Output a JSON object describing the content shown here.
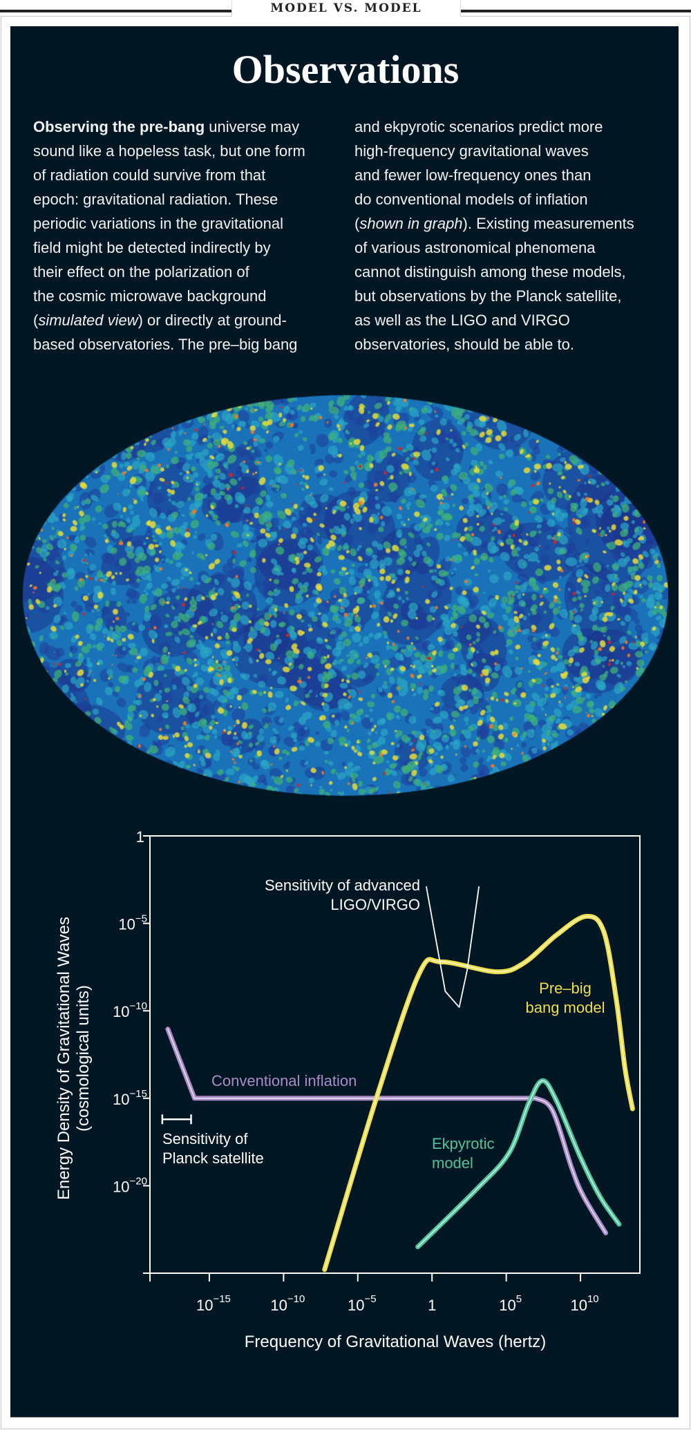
{
  "header": {
    "kicker": "MODEL VS. MODEL",
    "title": "Observations"
  },
  "text": {
    "left_lines": [
      [
        {
          "t": "Observing the pre-bang",
          "s": "b"
        },
        {
          "t": " universe may",
          "s": ""
        }
      ],
      [
        {
          "t": "sound like a hopeless task, but one form",
          "s": ""
        }
      ],
      [
        {
          "t": "of radiation could survive from that",
          "s": ""
        }
      ],
      [
        {
          "t": "epoch: gravitational radiation. These",
          "s": ""
        }
      ],
      [
        {
          "t": "periodic variations in the gravitational",
          "s": ""
        }
      ],
      [
        {
          "t": "field might be detected indirectly by",
          "s": ""
        }
      ],
      [
        {
          "t": "their effect on the polarization of",
          "s": ""
        }
      ],
      [
        {
          "t": "the cosmic microwave background",
          "s": ""
        }
      ],
      [
        {
          "t": "(",
          "s": ""
        },
        {
          "t": "simulated view",
          "s": "i"
        },
        {
          "t": ") or directly at ground-",
          "s": ""
        }
      ],
      [
        {
          "t": "based observatories. The pre–big bang",
          "s": ""
        }
      ]
    ],
    "right_lines": [
      [
        {
          "t": "and ekpyrotic scenarios predict more",
          "s": ""
        }
      ],
      [
        {
          "t": "high-frequency gravitational waves",
          "s": ""
        }
      ],
      [
        {
          "t": "and fewer low-frequency ones than",
          "s": ""
        }
      ],
      [
        {
          "t": "do conventional models of inflation",
          "s": ""
        }
      ],
      [
        {
          "t": "(",
          "s": ""
        },
        {
          "t": "shown in graph",
          "s": "i"
        },
        {
          "t": "). Existing measurements",
          "s": ""
        }
      ],
      [
        {
          "t": "of various astronomical phenomena",
          "s": ""
        }
      ],
      [
        {
          "t": "cannot distinguish among these models,",
          "s": ""
        }
      ],
      [
        {
          "t": "but observations by the Planck satellite,",
          "s": ""
        }
      ],
      [
        {
          "t": "as well as the LIGO and VIRGO",
          "s": ""
        }
      ],
      [
        {
          "t": "observatories, should be able to.",
          "s": ""
        }
      ]
    ]
  },
  "colors": {
    "background": "#021723",
    "pre_big_bang": "#f0de4a",
    "conventional": "#a98cc8",
    "ekpyrotic": "#4fc39a",
    "ligo": "#ffffff"
  },
  "chart_data": {
    "type": "line",
    "xlabel": "Frequency of Gravitational Waves (hertz)",
    "ylabel": [
      "Energy Density of Gravitational Waves",
      "(cosmological units)"
    ],
    "xscale": "log",
    "yscale": "log",
    "xlim": [
      1e-19,
      100000000000000.0
    ],
    "ylim": [
      1e-25,
      1
    ],
    "xticks": [
      {
        "base": "10",
        "exp": "−15",
        "v": 1e-15
      },
      {
        "base": "10",
        "exp": "−10",
        "v": 1e-10
      },
      {
        "base": "10",
        "exp": "−5",
        "v": 1e-05
      },
      {
        "base": "1",
        "exp": "",
        "v": 1
      },
      {
        "base": "10",
        "exp": "5",
        "v": 100000.0
      },
      {
        "base": "10",
        "exp": "10",
        "v": 10000000000.0
      }
    ],
    "yticks": [
      {
        "base": "1",
        "exp": "",
        "v": 1
      },
      {
        "base": "10",
        "exp": "−5",
        "v": 1e-05
      },
      {
        "base": "10",
        "exp": "−10",
        "v": 1e-10
      },
      {
        "base": "10",
        "exp": "−15",
        "v": 1e-15
      },
      {
        "base": "10",
        "exp": "−20",
        "v": 1e-20
      }
    ],
    "grid": false,
    "series": [
      {
        "name": "Conventional inflation",
        "color": "#a98cc8",
        "x": [
          1.6e-18,
          1e-16,
          10000000.0,
          130000000.0,
          2500000000.0,
          16000000000.0,
          500000000000.0
        ],
        "y": [
          9e-12,
          1e-15,
          1e-15,
          2e-16,
          1.1e-19,
          2.5e-21,
          2e-23
        ]
      },
      {
        "name": "Pre–big bang model",
        "color": "#f0de4a",
        "x": [
          5.8e-08,
          0.00023,
          0.14,
          4.3,
          23000.0,
          1600000.0,
          250000000.0,
          23000000000.0,
          360000000000.0,
          2500000000000.0,
          10000000000000.0,
          32000000000000.0
        ],
        "y": [
          1.6e-25,
          2e-15,
          1.4e-08,
          6.3e-08,
          1.7e-08,
          5.5e-08,
          2.2e-06,
          2.5e-05,
          3.6e-06,
          5.4e-10,
          5e-14,
          2.5e-16
        ]
      },
      {
        "name": "Ekpyrotic model",
        "color": "#4fc39a",
        "x": [
          0.11,
          1000.0,
          160000.0,
          3200000.0,
          27000000.0,
          230000000.0,
          9100000000.0,
          200000000000.0,
          4000000000000.0
        ],
        "y": [
          3.2e-24,
          6.3e-21,
          7.9e-19,
          5e-16,
          1e-14,
          7.9e-16,
          5e-19,
          2.5e-21,
          6.3e-23
        ]
      },
      {
        "name": "Sensitivity of advanced LIGO/VIRGO",
        "color": "#ffffff",
        "x": [
          0.41,
          7.8,
          68,
          230,
          1450
        ],
        "y": [
          0.0013,
          1.3e-09,
          1.6e-10,
          2e-08,
          0.0013
        ]
      }
    ],
    "planck_sensitivity": {
      "x": [
        6.8e-19,
        5.9e-17
      ],
      "y": 6.3e-17
    },
    "annotations": {
      "ligo": [
        "Sensitivity of advanced",
        "LIGO/VIRGO"
      ],
      "pre_big_bang": [
        "Pre–big",
        "bang model"
      ],
      "conventional": [
        "Conventional inflation"
      ],
      "planck": [
        "Sensitivity of",
        "Planck satellite"
      ],
      "ekpyrotic": [
        "Ekpyrotic",
        "model"
      ]
    }
  }
}
